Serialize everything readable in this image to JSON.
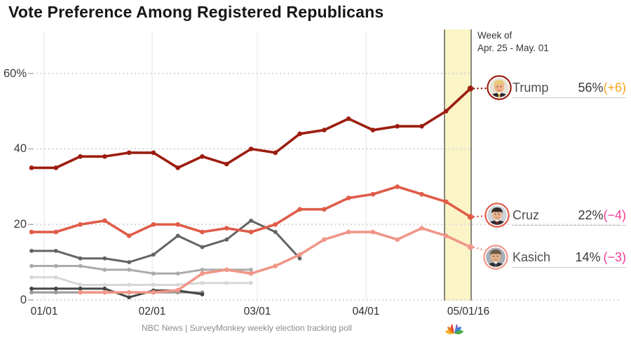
{
  "title": "Vote Preference Among Registered Republicans",
  "annotation": {
    "line1": "Week of",
    "line2": "Apr. 25 - May. 01"
  },
  "y_axis": {
    "labels": [
      "60%",
      "40",
      "20",
      "0"
    ],
    "values": [
      60,
      40,
      20,
      0
    ]
  },
  "x_axis": {
    "labels": [
      "01/01",
      "02/01",
      "03/01",
      "04/01",
      "05/01/16"
    ]
  },
  "candidates": [
    {
      "name": "Trump",
      "pct": "56%",
      "delta": "(+6)",
      "delta_color": "#f5a51f",
      "color": "#9c1d10",
      "avatar_icon": "trump-photo-avatar"
    },
    {
      "name": "Cruz",
      "pct": "22%",
      "delta": "(−4)",
      "delta_color": "#f23e96",
      "color": "#df5c49",
      "avatar_icon": "cruz-photo-avatar"
    },
    {
      "name": "Kasich",
      "pct": "14%",
      "delta": "(−3)",
      "delta_color": "#f23e96",
      "color": "#f09688",
      "avatar_icon": "kasich-photo-avatar"
    }
  ],
  "footer": {
    "source": "NBC News | SurveyMonkey weekly election tracking poll",
    "logo_icon": "nbc-peacock-logo"
  },
  "colors": {
    "trump_red": "#9c1d10",
    "cruz_salmon": "#df5c49",
    "kasich_salmon": "#f09688",
    "highlight_band_fill": "#faf4c6",
    "highlight_band_border": "#57544c",
    "plus_orange": "#f5a51f",
    "minus_pink": "#f23e96",
    "gridline_dot": "#d6d6d6",
    "month_gridline": "#ebebeb"
  },
  "chart_data": {
    "type": "line",
    "title": "Vote Preference Among Registered Republicans",
    "x_week_ending": [
      "12/28",
      "01/04",
      "01/11",
      "01/18",
      "01/25",
      "02/01",
      "02/08",
      "02/15",
      "02/22",
      "02/29",
      "03/07",
      "03/14",
      "03/21",
      "03/28",
      "04/04",
      "04/11",
      "04/18",
      "04/25",
      "05/01"
    ],
    "x_month_ticks": [
      "01/01",
      "02/01",
      "03/01",
      "04/01",
      "05/01/16"
    ],
    "ylim": [
      0,
      65
    ],
    "y_gridlines": [
      60,
      40,
      20,
      0
    ],
    "grid_style": "dotted horizontal, solid faint vertical at month starts",
    "legend_position": "right-edge labels with photo avatars",
    "highlight_band": {
      "weeks": [
        "04/25",
        "05/01"
      ],
      "label": "Week of Apr. 25 - May. 01"
    },
    "series": [
      {
        "name": "unlabeled-gray-light-c",
        "color": "#d7d7d7",
        "start": 0,
        "values": [
          6,
          6,
          4,
          4,
          4,
          4,
          4,
          4.5,
          4.5,
          4.5
        ]
      },
      {
        "name": "unlabeled-gray-mid-f",
        "color": "#999999",
        "start": 0,
        "values": [
          2,
          2,
          2,
          2,
          2,
          2,
          2,
          2
        ]
      },
      {
        "name": "unlabeled-gray-dark-e",
        "color": "#454545",
        "start": 0,
        "values": [
          3,
          3,
          3,
          3,
          0.7,
          2.5,
          2.5,
          1.5
        ]
      },
      {
        "name": "unlabeled-gray-mid-b",
        "color": "#ababab",
        "start": 0,
        "values": [
          9,
          9,
          9,
          8,
          8,
          7,
          7,
          8,
          8,
          8
        ]
      },
      {
        "name": "unlabeled-gray-dark-a",
        "color": "#636363",
        "start": 0,
        "values": [
          13,
          13,
          11,
          11,
          10,
          12,
          17,
          14,
          16,
          21,
          18,
          11
        ]
      },
      {
        "name": "Kasich",
        "color": "#f09688",
        "start": 2,
        "values": [
          2,
          2,
          2,
          2,
          2.6,
          7,
          8,
          7,
          9,
          12,
          16,
          18,
          18,
          16,
          19,
          17,
          14
        ],
        "end_label": "14% (−3)"
      },
      {
        "name": "Cruz",
        "color": "#df5c49",
        "start": 0,
        "values": [
          18,
          18,
          20,
          21,
          17,
          20,
          20,
          18,
          19,
          18,
          20,
          24,
          24,
          27,
          28,
          30,
          28,
          26,
          22
        ],
        "end_label": "22%(−4)"
      },
      {
        "name": "Trump",
        "color": "#9c1d10",
        "start": 0,
        "values": [
          35,
          35,
          38,
          38,
          39,
          39,
          35,
          38,
          36,
          40,
          39,
          44,
          45,
          48,
          45,
          46,
          46,
          50,
          56
        ],
        "end_label": "56%(+6)"
      }
    ]
  }
}
